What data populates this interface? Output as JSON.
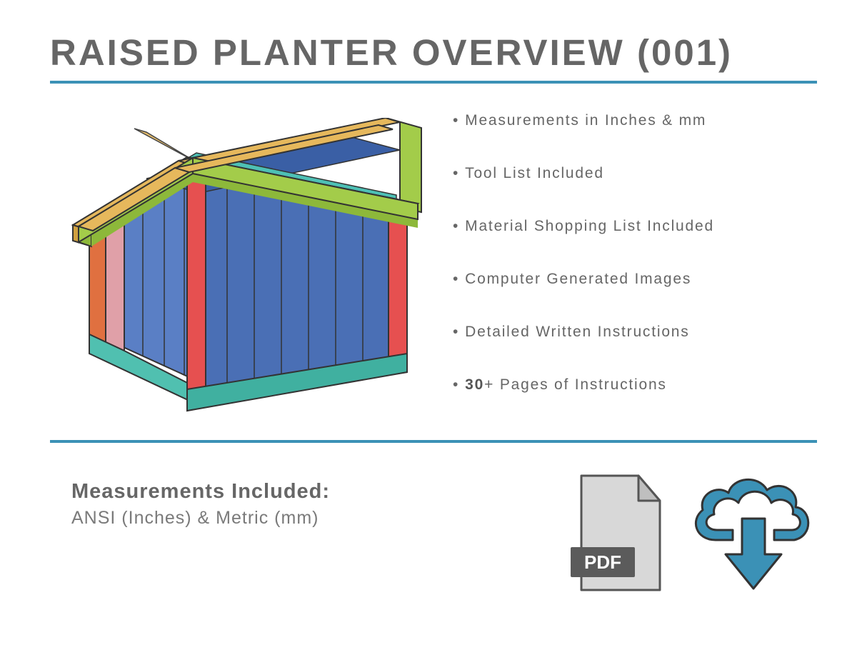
{
  "title": "RAISED PLANTER OVERVIEW (001)",
  "divider_color": "#3b91b6",
  "feature_text_color": "#666666",
  "features": [
    {
      "text": "Measurements in Inches & mm"
    },
    {
      "text": "Tool List Included"
    },
    {
      "text": "Material Shopping List Included"
    },
    {
      "text": "Computer Generated Images"
    },
    {
      "text": "Detailed Written Instructions"
    },
    {
      "html": "<b>30</b>+ Pages of Instructions"
    }
  ],
  "measurements": {
    "title": "Measurements Included:",
    "subtitle": "ANSI (Inches) & Metric (mm)"
  },
  "planter": {
    "colors": {
      "top_frame_front": "#a3cc4a",
      "top_frame_side": "#e6b85c",
      "top_frame_inner": "#4dc0b5",
      "corner_post_front": "#e65050",
      "corner_post_left1": "#e07040",
      "corner_post_left2": "#e0a0a8",
      "side_panel_front": "#4a6fb5",
      "side_panel_left": "#5a7fc5",
      "side_panel_inner": "#3a5fa5",
      "bottom_rail_front": "#40b0a0",
      "bottom_rail_left": "#50c0b0",
      "outline": "#333333"
    }
  },
  "icons": {
    "pdf": {
      "fill": "#d8d8d8",
      "fold": "#bfbfbf",
      "label_bg": "#5b5b5b",
      "label_text": "PDF",
      "text_color": "#ffffff",
      "outline": "#555555"
    },
    "cloud": {
      "stroke": "#3b91b6",
      "arrow": "#3b91b6"
    }
  }
}
